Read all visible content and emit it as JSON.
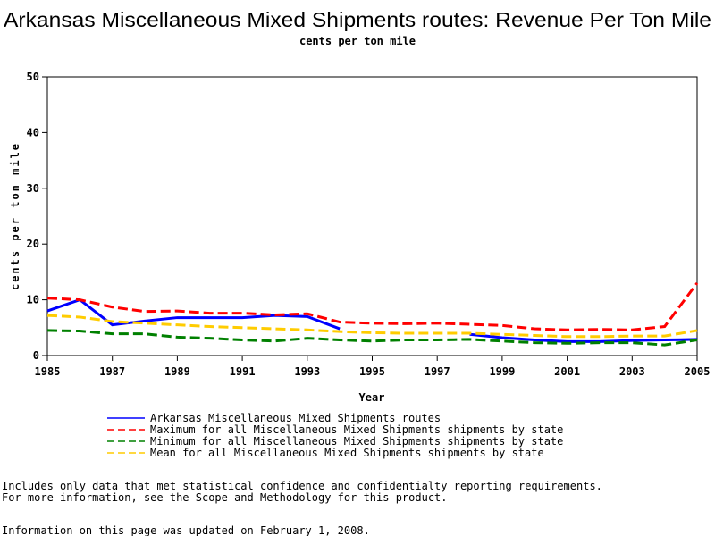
{
  "chart_data": {
    "type": "line",
    "title": "Arkansas Miscellaneous Mixed Shipments routes: Revenue Per Ton Mile",
    "subtitle": "cents per ton mile",
    "x_label": "Year",
    "y_label": "cents per ton mile",
    "x": [
      1985,
      1986,
      1987,
      1988,
      1989,
      1990,
      1991,
      1992,
      1993,
      1994,
      1995,
      1996,
      1997,
      1998,
      1999,
      2000,
      2001,
      2002,
      2003,
      2004,
      2005
    ],
    "xlim": [
      1985,
      2005
    ],
    "xticks": [
      1985,
      1987,
      1989,
      1991,
      1993,
      1995,
      1997,
      1999,
      2001,
      2003,
      2005
    ],
    "ylim": [
      0,
      50
    ],
    "yticks": [
      0,
      10,
      20,
      30,
      40,
      50
    ],
    "series": [
      {
        "name": "Arkansas Miscellaneous Mixed Shipments routes",
        "color": "#0000ff",
        "style": "solid",
        "values": [
          8,
          10,
          5.5,
          6.2,
          6.8,
          6.8,
          6.8,
          7.2,
          7,
          4.8,
          null,
          null,
          null,
          3.8,
          3.2,
          2.8,
          2.5,
          2.5,
          2.7,
          2.8,
          2.9
        ]
      },
      {
        "name": "Maximum for all Miscellaneous Mixed Shipments shipments by state",
        "color": "#ff0000",
        "style": "dashed",
        "values": [
          10.3,
          10,
          8.7,
          7.9,
          8,
          7.6,
          7.6,
          7.3,
          7.5,
          6,
          5.8,
          5.7,
          5.8,
          5.6,
          5.4,
          4.8,
          4.6,
          4.7,
          4.6,
          5.2,
          13
        ]
      },
      {
        "name": "Minimum for all Miscellaneous Mixed Shipments shipments by state",
        "color": "#008000",
        "style": "dashed",
        "values": [
          4.5,
          4.4,
          3.9,
          3.9,
          3.3,
          3.1,
          2.8,
          2.6,
          3.1,
          2.8,
          2.6,
          2.8,
          2.8,
          2.9,
          2.6,
          2.3,
          2.2,
          2.3,
          2.3,
          1.9,
          2.8
        ]
      },
      {
        "name": "Mean for all Miscellaneous Mixed Shipments shipments by state",
        "color": "#ffcc00",
        "style": "dashed",
        "values": [
          7.2,
          6.9,
          6.1,
          5.8,
          5.5,
          5.2,
          5,
          4.8,
          4.6,
          4.3,
          4.1,
          4,
          4,
          4,
          3.8,
          3.6,
          3.4,
          3.4,
          3.5,
          3.5,
          4.5
        ]
      }
    ]
  },
  "footer": [
    "Includes only data that met statistical confidence and confidentialty reporting requirements.",
    "For more information, see the Scope and Methodology for this product.",
    "Information on this page was updated on February 1, 2008."
  ]
}
